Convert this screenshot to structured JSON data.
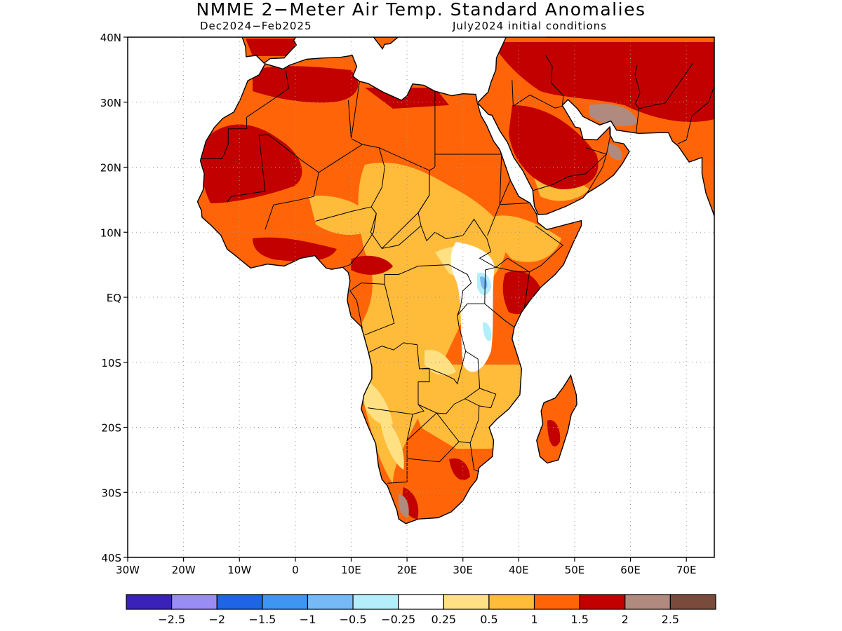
{
  "title": "NMME 2−Meter Air Temp. Standard Anomalies",
  "subtitle_left": "Dec2024−Feb2025",
  "subtitle_right": "July2024 initial conditions",
  "axes": {
    "lon_labels": [
      "30W",
      "20W",
      "10W",
      "0",
      "10E",
      "20E",
      "30E",
      "40E",
      "50E",
      "60E",
      "70E"
    ],
    "lat_labels": [
      "40N",
      "30N",
      "20N",
      "10N",
      "EQ",
      "10S",
      "20S",
      "30S",
      "40S"
    ],
    "lon_range": [
      -30,
      75
    ],
    "lat_range": [
      -40,
      40
    ],
    "grid": "dotted"
  },
  "colorbar": {
    "colors": [
      "#3a22b8",
      "#9a8cf5",
      "#1f64e4",
      "#3d96f2",
      "#76b9f7",
      "#b4eefa",
      "#ffffff",
      "#ffe083",
      "#ffbb3a",
      "#ff6508",
      "#c20000",
      "#b08a7e",
      "#7a4a3c"
    ],
    "labels": [
      "−2.5",
      "−2",
      "−1.5",
      "−1",
      "−0.5",
      "−0.25",
      "0.25",
      "0.5",
      "1",
      "1.5",
      "2",
      "2.5"
    ]
  },
  "legend_values": {
    "min": "-2.5",
    "max": "2.5"
  }
}
